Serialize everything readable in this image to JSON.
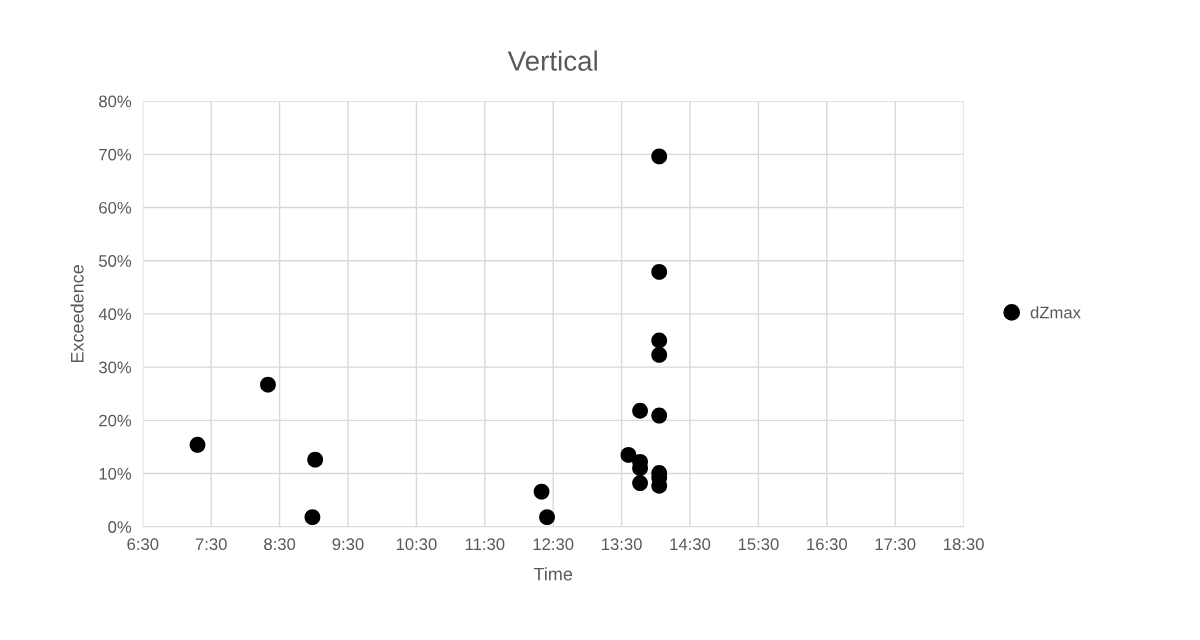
{
  "chart_data": {
    "type": "scatter",
    "title": "Vertical",
    "xlabel": "Time",
    "ylabel": "Exceedence",
    "series": [
      {
        "name": "dZmax",
        "color": "#000000",
        "x": [
          7.3,
          8.33,
          9.02,
          8.98,
          12.33,
          12.41,
          14.05,
          14.05,
          14.05,
          14.05,
          13.77,
          14.05,
          13.6,
          13.77,
          13.77,
          13.77,
          14.05,
          14.05,
          14.05
        ],
        "values": [
          15.4,
          26.7,
          12.6,
          1.8,
          6.6,
          1.8,
          69.6,
          47.9,
          35.0,
          32.3,
          21.8,
          20.9,
          13.5,
          12.2,
          11.0,
          8.2,
          10.1,
          9.2,
          7.7
        ]
      }
    ],
    "xlim": [
      6.5,
      18.5
    ],
    "xticks": [
      {
        "value": 6.5,
        "label": "6:30"
      },
      {
        "value": 7.5,
        "label": "7:30"
      },
      {
        "value": 8.5,
        "label": "8:30"
      },
      {
        "value": 9.5,
        "label": "9:30"
      },
      {
        "value": 10.5,
        "label": "10:30"
      },
      {
        "value": 11.5,
        "label": "11:30"
      },
      {
        "value": 12.5,
        "label": "12:30"
      },
      {
        "value": 13.5,
        "label": "13:30"
      },
      {
        "value": 14.5,
        "label": "14:30"
      },
      {
        "value": 15.5,
        "label": "15:30"
      },
      {
        "value": 16.5,
        "label": "16:30"
      },
      {
        "value": 17.5,
        "label": "17:30"
      },
      {
        "value": 18.5,
        "label": "18:30"
      }
    ],
    "ylim": [
      0,
      80
    ],
    "yticks": [
      {
        "value": 0,
        "label": "0%"
      },
      {
        "value": 10,
        "label": "10%"
      },
      {
        "value": 20,
        "label": "20%"
      },
      {
        "value": 30,
        "label": "30%"
      },
      {
        "value": 40,
        "label": "40%"
      },
      {
        "value": 50,
        "label": "50%"
      },
      {
        "value": 60,
        "label": "60%"
      },
      {
        "value": 70,
        "label": "70%"
      },
      {
        "value": 80,
        "label": "80%"
      }
    ],
    "grid": true,
    "legend": "right",
    "marker": "circle"
  }
}
